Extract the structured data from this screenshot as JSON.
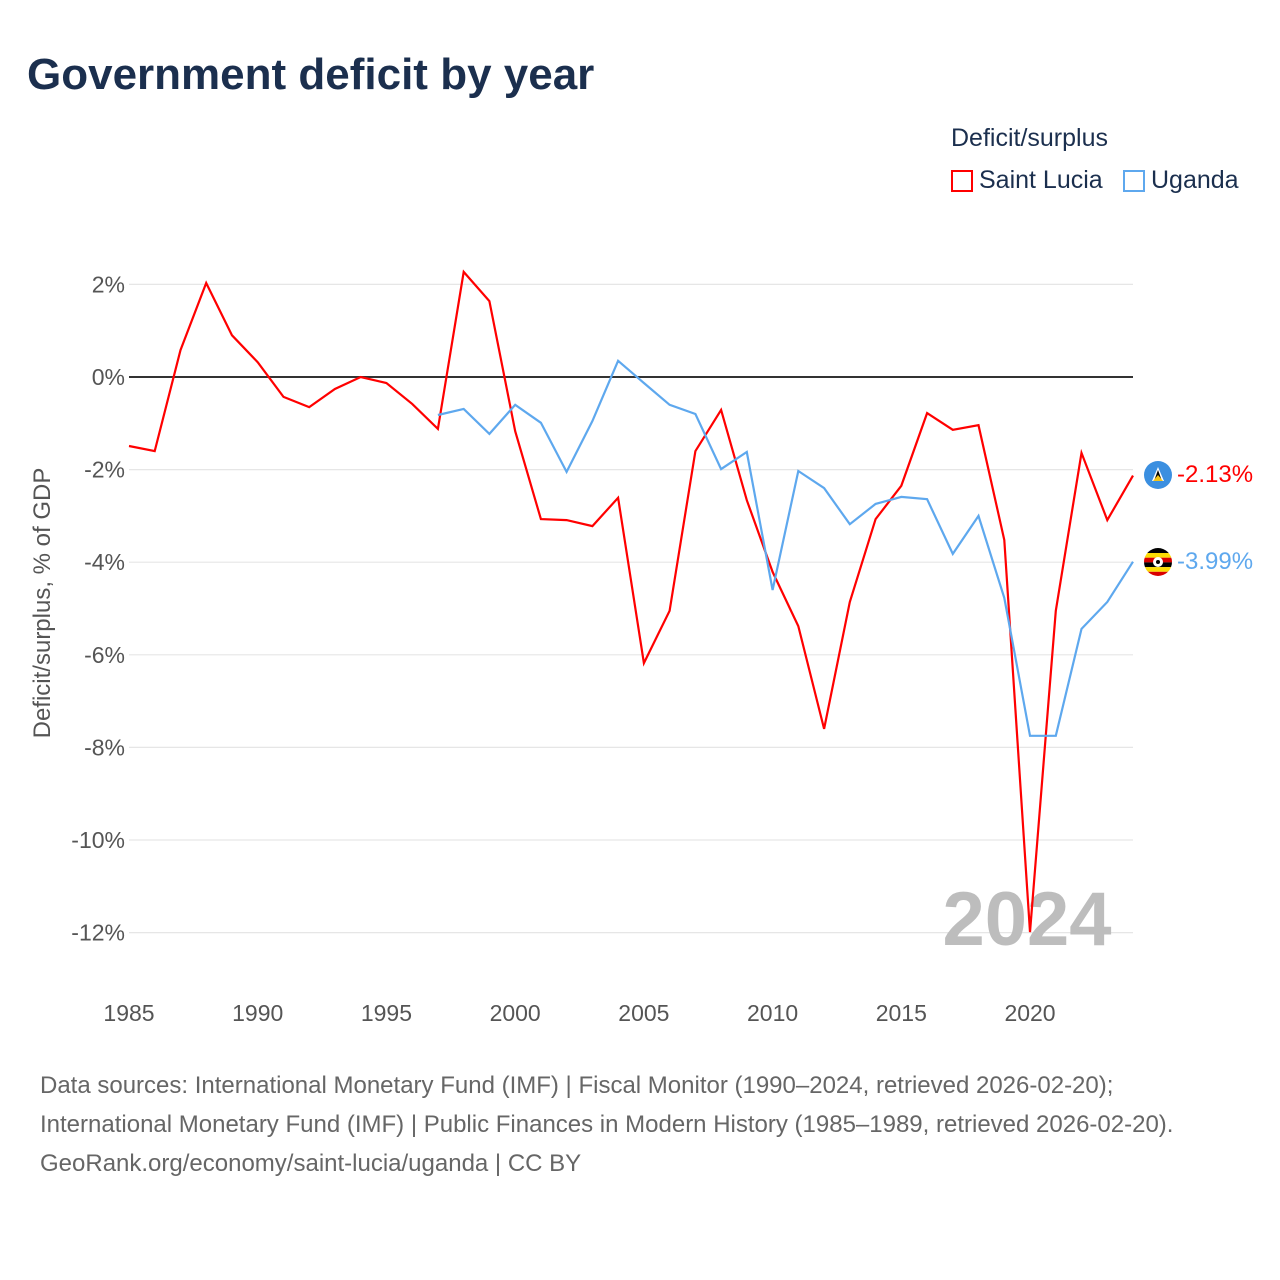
{
  "title": "Government deficit by year",
  "legend": {
    "title": "Deficit/surplus",
    "items": [
      {
        "label": "Saint Lucia",
        "color": "#ff0000"
      },
      {
        "label": "Uganda",
        "color": "#5ea8ee"
      }
    ]
  },
  "footer": {
    "sources": "Data sources: International Monetary Fund (IMF) | Fiscal Monitor (1990–2024, retrieved 2026-02-20); International Monetary Fund (IMF) | Public Finances in Modern History (1985–1989, retrieved 2026-02-20).",
    "credit": "GeoRank.org/economy/saint-lucia/uganda | CC BY"
  },
  "chart_data": {
    "type": "line",
    "title": "Government deficit by year",
    "xlabel": "",
    "ylabel": "Deficit/surplus, % of GDP",
    "xlim": [
      1985,
      2024
    ],
    "ylim": [
      -13,
      2.5
    ],
    "x_ticks": [
      1985,
      1990,
      1995,
      2000,
      2005,
      2010,
      2015,
      2020
    ],
    "y_ticks": [
      2,
      0,
      -2,
      -4,
      -6,
      -8,
      -10,
      -12
    ],
    "y_tick_labels": [
      "2%",
      "0%",
      "-2%",
      "-4%",
      "-6%",
      "-8%",
      "-10%",
      "-12%"
    ],
    "year_watermark": "2024",
    "series": [
      {
        "name": "Saint Lucia",
        "color": "#ff0000",
        "end_label": "-2.13%",
        "start_year": 1985,
        "values": [
          -1.49,
          -1.6,
          0.58,
          2.03,
          0.9,
          0.32,
          -0.43,
          -0.65,
          -0.26,
          0.0,
          -0.13,
          -0.58,
          -1.12,
          2.27,
          1.64,
          -1.17,
          -3.07,
          -3.09,
          -3.22,
          -2.61,
          -6.18,
          -5.05,
          -1.6,
          -0.71,
          -2.66,
          -4.21,
          -5.38,
          -7.6,
          -4.86,
          -3.07,
          -2.35,
          -0.78,
          -1.14,
          -1.04,
          -3.52,
          -11.99,
          -5.05,
          -1.64,
          -3.09,
          -2.13
        ]
      },
      {
        "name": "Uganda",
        "color": "#5ea8ee",
        "end_label": "-3.99%",
        "start_year": 1997,
        "values": [
          -0.82,
          -0.69,
          -1.23,
          -0.6,
          -0.99,
          -2.05,
          -0.95,
          0.35,
          -0.13,
          -0.6,
          -0.8,
          -1.99,
          -1.62,
          -4.6,
          -2.03,
          -2.4,
          -3.18,
          -2.74,
          -2.59,
          -2.64,
          -3.82,
          -3.0,
          -4.77,
          -7.75,
          -7.75,
          -5.44,
          -4.86,
          -3.99
        ]
      }
    ]
  }
}
